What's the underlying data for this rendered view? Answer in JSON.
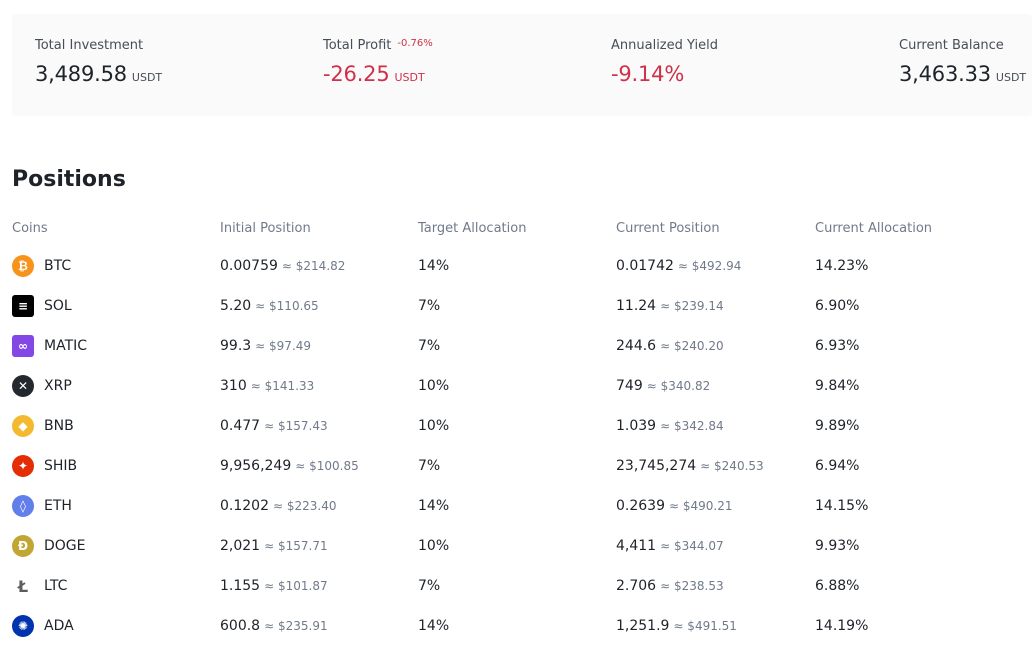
{
  "summary": {
    "total_investment": {
      "label": "Total Investment",
      "value": "3,489.58",
      "unit": "USDT"
    },
    "total_profit": {
      "label": "Total Profit",
      "badge": "-0.76%",
      "value": "-26.25",
      "unit": "USDT"
    },
    "annualized_yield": {
      "label": "Annualized Yield",
      "value": "-9.14%"
    },
    "current_balance": {
      "label": "Current Balance",
      "value": "3,463.33",
      "unit": "USDT"
    }
  },
  "positions": {
    "title": "Positions",
    "columns": [
      "Coins",
      "Initial Position",
      "Target Allocation",
      "Current Position",
      "Current Allocation"
    ],
    "rows": [
      {
        "coin": "BTC",
        "icon": "bitcoin-icon",
        "color": "#f7931a",
        "glyph": "₿",
        "initial": "0.00759",
        "initial_usd": "≈ $214.82",
        "target": "14%",
        "current": "0.01742",
        "current_usd": "≈ $492.94",
        "allocation": "14.23%"
      },
      {
        "coin": "SOL",
        "icon": "solana-icon",
        "color": "#000000",
        "glyph": "≡",
        "initial": "5.20",
        "initial_usd": "≈ $110.65",
        "target": "7%",
        "current": "11.24",
        "current_usd": "≈ $239.14",
        "allocation": "6.90%"
      },
      {
        "coin": "MATIC",
        "icon": "polygon-icon",
        "color": "#8247e5",
        "glyph": "∞",
        "initial": "99.3",
        "initial_usd": "≈ $97.49",
        "target": "7%",
        "current": "244.6",
        "current_usd": "≈ $240.20",
        "allocation": "6.93%"
      },
      {
        "coin": "XRP",
        "icon": "xrp-icon",
        "color": "#23292f",
        "glyph": "✕",
        "initial": "310",
        "initial_usd": "≈ $141.33",
        "target": "10%",
        "current": "749",
        "current_usd": "≈ $340.82",
        "allocation": "9.84%"
      },
      {
        "coin": "BNB",
        "icon": "bnb-icon",
        "color": "#f3ba2f",
        "glyph": "◆",
        "initial": "0.477",
        "initial_usd": "≈ $157.43",
        "target": "10%",
        "current": "1.039",
        "current_usd": "≈ $342.84",
        "allocation": "9.89%"
      },
      {
        "coin": "SHIB",
        "icon": "shiba-icon",
        "color": "#e42d04",
        "glyph": "✦",
        "initial": "9,956,249",
        "initial_usd": "≈ $100.85",
        "target": "7%",
        "current": "23,745,274",
        "current_usd": "≈ $240.53",
        "allocation": "6.94%"
      },
      {
        "coin": "ETH",
        "icon": "ethereum-icon",
        "color": "#627eea",
        "glyph": "◊",
        "initial": "0.1202",
        "initial_usd": "≈ $223.40",
        "target": "14%",
        "current": "0.2639",
        "current_usd": "≈ $490.21",
        "allocation": "14.15%"
      },
      {
        "coin": "DOGE",
        "icon": "dogecoin-icon",
        "color": "#c2a633",
        "glyph": "Ð",
        "initial": "2,021",
        "initial_usd": "≈ $157.71",
        "target": "10%",
        "current": "4,411",
        "current_usd": "≈ $344.07",
        "allocation": "9.93%"
      },
      {
        "coin": "LTC",
        "icon": "litecoin-icon",
        "color": "#ffffff",
        "glyph": "Ł",
        "initial": "1.155",
        "initial_usd": "≈ $101.87",
        "target": "7%",
        "current": "2.706",
        "current_usd": "≈ $238.53",
        "allocation": "6.88%"
      },
      {
        "coin": "ADA",
        "icon": "cardano-icon",
        "color": "#0033ad",
        "glyph": "✺",
        "initial": "600.8",
        "initial_usd": "≈ $235.91",
        "target": "14%",
        "current": "1,251.9",
        "current_usd": "≈ $491.51",
        "allocation": "14.19%"
      }
    ]
  }
}
